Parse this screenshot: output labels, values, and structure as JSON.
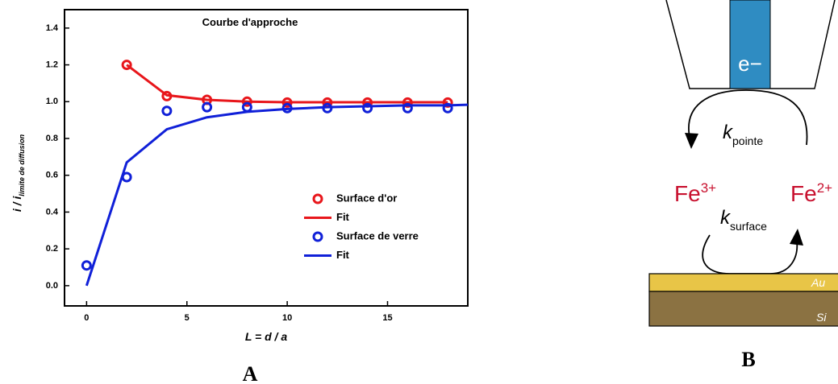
{
  "chart_data": {
    "type": "scatter",
    "title": "Courbe d'approche",
    "x_label": "L = d / a",
    "y_label": {
      "main": "i / i",
      "sub": "limite de diffusion"
    },
    "xlim": [
      -1.1,
      19
    ],
    "xticks": [
      0,
      5,
      10,
      15
    ],
    "ylim": [
      -0.11,
      1.5
    ],
    "yticks": [
      {
        "value": 0,
        "label": "0.0"
      },
      0.2,
      0.4,
      0.6,
      0.8,
      {
        "value": 1,
        "label": "1.0"
      },
      1.2,
      1.4
    ],
    "legend": "center right",
    "series": [
      {
        "name": "Surface d'or",
        "color": "#e8161b",
        "mark": "marker",
        "x": [
          2,
          4,
          6,
          8,
          10,
          12,
          14,
          16,
          18
        ],
        "values": [
          1.2,
          1.03,
          1.01,
          1.0,
          0.995,
          0.995,
          0.995,
          0.995,
          0.995
        ]
      },
      {
        "name": "Fit",
        "color": "#e8161b",
        "mark": "line",
        "x": [
          2,
          4,
          6,
          8,
          10,
          12,
          14,
          16,
          18
        ],
        "values": [
          1.2,
          1.035,
          1.01,
          1.0,
          0.997,
          0.997,
          0.997,
          0.997,
          0.997
        ]
      },
      {
        "name": "Surface de verre",
        "color": "#1020d8",
        "mark": "marker",
        "x": [
          0,
          2,
          4,
          6,
          8,
          10,
          12,
          14,
          16,
          18
        ],
        "values": [
          0.11,
          0.59,
          0.95,
          0.97,
          0.97,
          0.965,
          0.965,
          0.965,
          0.965,
          0.965
        ]
      },
      {
        "name": "Fit",
        "color": "#1020d8",
        "mark": "line",
        "x": [
          0,
          2,
          4,
          6,
          8,
          10,
          12,
          14,
          16,
          18,
          19
        ],
        "values": [
          0,
          0.67,
          0.85,
          0.915,
          0.945,
          0.96,
          0.97,
          0.975,
          0.98,
          0.98,
          0.983
        ]
      }
    ]
  },
  "panel_a": "A",
  "diagram": {
    "label": "B",
    "electron": "e−",
    "k_tip": {
      "k": "k",
      "sub": "pointe"
    },
    "k_surface": {
      "k": "k",
      "sub": "surface"
    },
    "fe_left": {
      "base": "Fe",
      "sup": "3+"
    },
    "fe_right": {
      "base": "Fe",
      "sup": "2+"
    },
    "layer_top": "Au",
    "layer_bottom": "Si"
  }
}
